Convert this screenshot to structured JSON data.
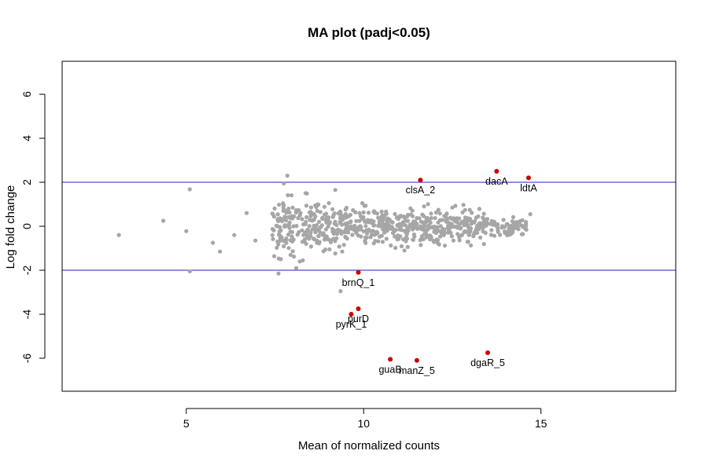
{
  "chart_data": {
    "type": "scatter",
    "title": "MA plot (padj<0.05)",
    "xlabel": "Mean of normalized counts",
    "ylabel": "Log fold change",
    "xlim": [
      1.5,
      18.8
    ],
    "ylim": [
      -7.5,
      7.5
    ],
    "xticks": [
      5,
      10,
      15
    ],
    "yticks": [
      -6,
      -4,
      -2,
      0,
      2,
      4,
      6
    ],
    "hlines": [
      {
        "y": 2,
        "color": "#2020cc"
      },
      {
        "y": -2,
        "color": "#2020cc"
      }
    ],
    "grid": false,
    "legend": "none",
    "colors": {
      "background_points": "#a6a6a6",
      "significant_points": "#cc0000",
      "threshold_line": "#2020cc"
    },
    "background_series": {
      "count": 620,
      "seed": 20240517,
      "outliers": [
        [
          3.1,
          -0.4
        ],
        [
          4.35,
          0.25
        ],
        [
          5.0,
          -0.22
        ],
        [
          5.1,
          1.68
        ],
        [
          5.1,
          -2.05
        ],
        [
          5.75,
          -0.75
        ],
        [
          5.95,
          -1.15
        ],
        [
          6.35,
          -0.4
        ],
        [
          6.7,
          0.6
        ],
        [
          6.95,
          -0.65
        ],
        [
          7.85,
          2.3
        ],
        [
          7.75,
          1.95
        ],
        [
          7.6,
          -2.15
        ],
        [
          8.1,
          -1.9
        ],
        [
          9.35,
          -2.95
        ],
        [
          13.2,
          -0.3
        ],
        [
          14.05,
          0.1
        ],
        [
          14.35,
          0.0
        ],
        [
          14.2,
          -0.15
        ],
        [
          14.7,
          0.55
        ],
        [
          14.55,
          -0.1
        ],
        [
          12.5,
          0.85
        ],
        [
          9.2,
          1.65
        ],
        [
          8.2,
          -1.6
        ],
        [
          11.15,
          -1.1
        ]
      ]
    },
    "significant_genes": [
      {
        "name": "clsA_2",
        "x": 11.6,
        "y": 2.1,
        "label_dx": 0,
        "label_dy": 17
      },
      {
        "name": "dacA",
        "x": 13.75,
        "y": 2.5,
        "label_dx": 0,
        "label_dy": 17
      },
      {
        "name": "ldtA",
        "x": 14.65,
        "y": 2.2,
        "label_dx": 0,
        "label_dy": 17
      },
      {
        "name": "brnQ_1",
        "x": 9.85,
        "y": -2.1,
        "label_dx": 0,
        "label_dy": 17
      },
      {
        "name": "purD",
        "x": 9.85,
        "y": -3.75,
        "label_dx": 0,
        "label_dy": 17
      },
      {
        "name": "pyrK_1",
        "x": 9.65,
        "y": -4.0,
        "label_dx": 0,
        "label_dy": 17
      },
      {
        "name": "guaB",
        "x": 10.75,
        "y": -6.05,
        "label_dx": 0,
        "label_dy": 17
      },
      {
        "name": "manZ_5",
        "x": 11.5,
        "y": -6.1,
        "label_dx": 0,
        "label_dy": 17
      },
      {
        "name": "dgaR_5",
        "x": 13.5,
        "y": -5.75,
        "label_dx": 0,
        "label_dy": 17
      }
    ]
  }
}
